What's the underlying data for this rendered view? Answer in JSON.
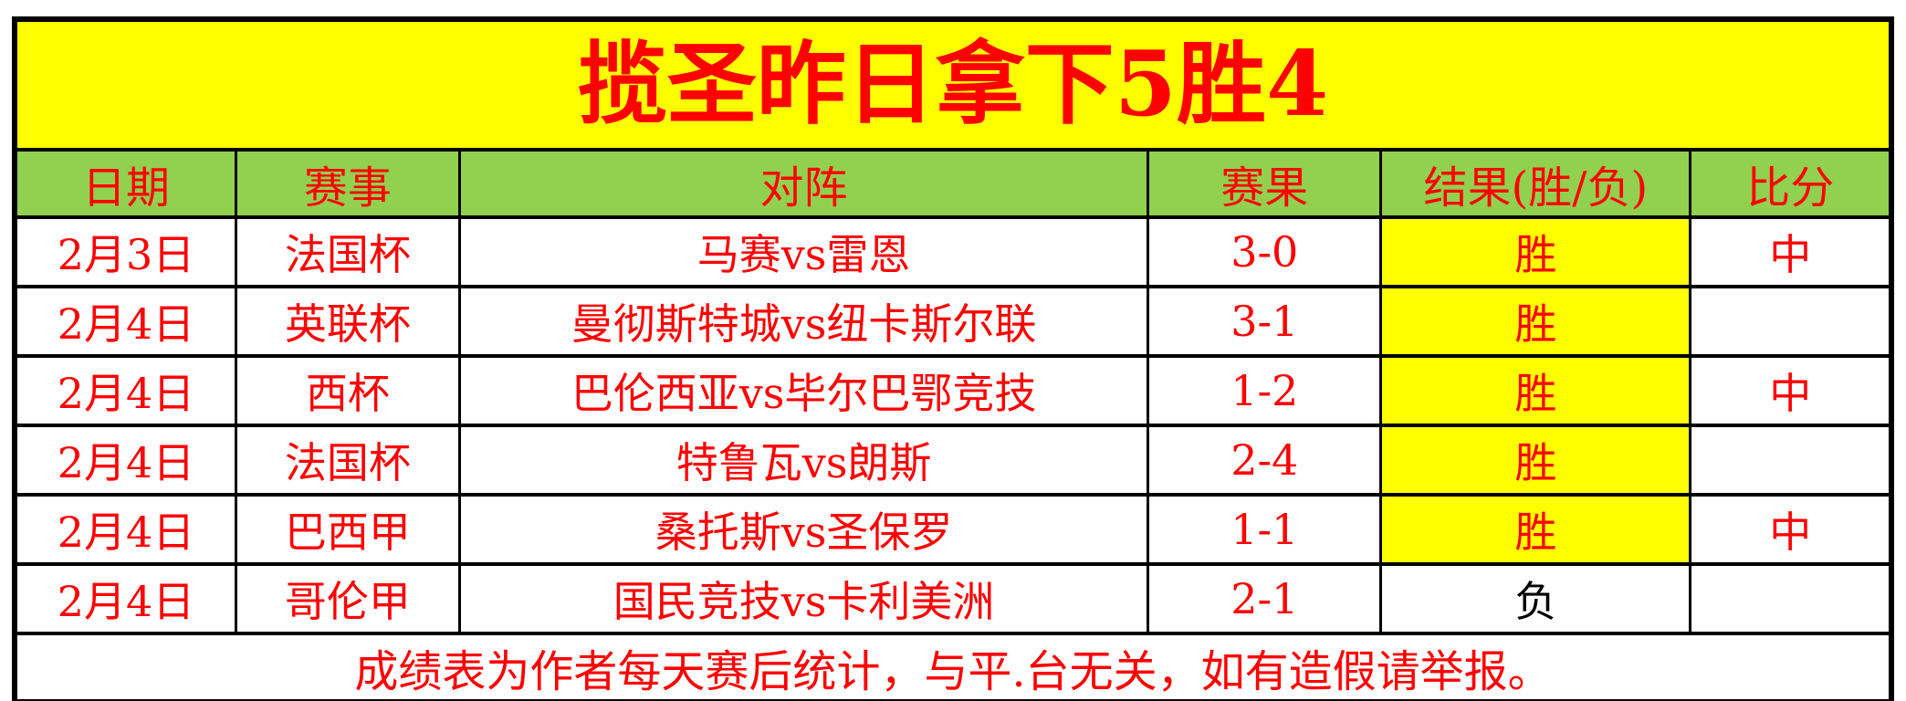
{
  "title": "揽圣昨日拿下5胜4",
  "table": {
    "headers": [
      "日期",
      "赛事",
      "对阵",
      "赛果",
      "结果(胜/负)",
      "比分"
    ],
    "rows": [
      {
        "date": "2月3日",
        "league": "法国杯",
        "match": "马赛vs雷恩",
        "score": "3-0",
        "result": "胜",
        "result_type": "win",
        "verdict": "中"
      },
      {
        "date": "2月4日",
        "league": "英联杯",
        "match": "曼彻斯特城vs纽卡斯尔联",
        "score": "3-1",
        "result": "胜",
        "result_type": "win",
        "verdict": ""
      },
      {
        "date": "2月4日",
        "league": "西杯",
        "match": "巴伦西亚vs毕尔巴鄂竞技",
        "score": "1-2",
        "result": "胜",
        "result_type": "win",
        "verdict": "中"
      },
      {
        "date": "2月4日",
        "league": "法国杯",
        "match": "特鲁瓦vs朗斯",
        "score": "2-4",
        "result": "胜",
        "result_type": "win",
        "verdict": ""
      },
      {
        "date": "2月4日",
        "league": "巴西甲",
        "match": "桑托斯vs圣保罗",
        "score": "1-1",
        "result": "胜",
        "result_type": "win",
        "verdict": "中"
      },
      {
        "date": "2月4日",
        "league": "哥伦甲",
        "match": "国民竞技vs卡利美洲",
        "score": "2-1",
        "result": "负",
        "result_type": "loss",
        "verdict": ""
      }
    ]
  },
  "footer": "成绩表为作者每天赛后统计，与平.台无关，如有造假请举报。",
  "colors": {
    "title_bg": "#FFFF00",
    "header_bg": "#92D050",
    "accent_text": "#FF0000",
    "win_bg": "#FFFF00",
    "loss_text": "#000000",
    "border": "#000000",
    "page_bg": "#FFFFFF"
  }
}
